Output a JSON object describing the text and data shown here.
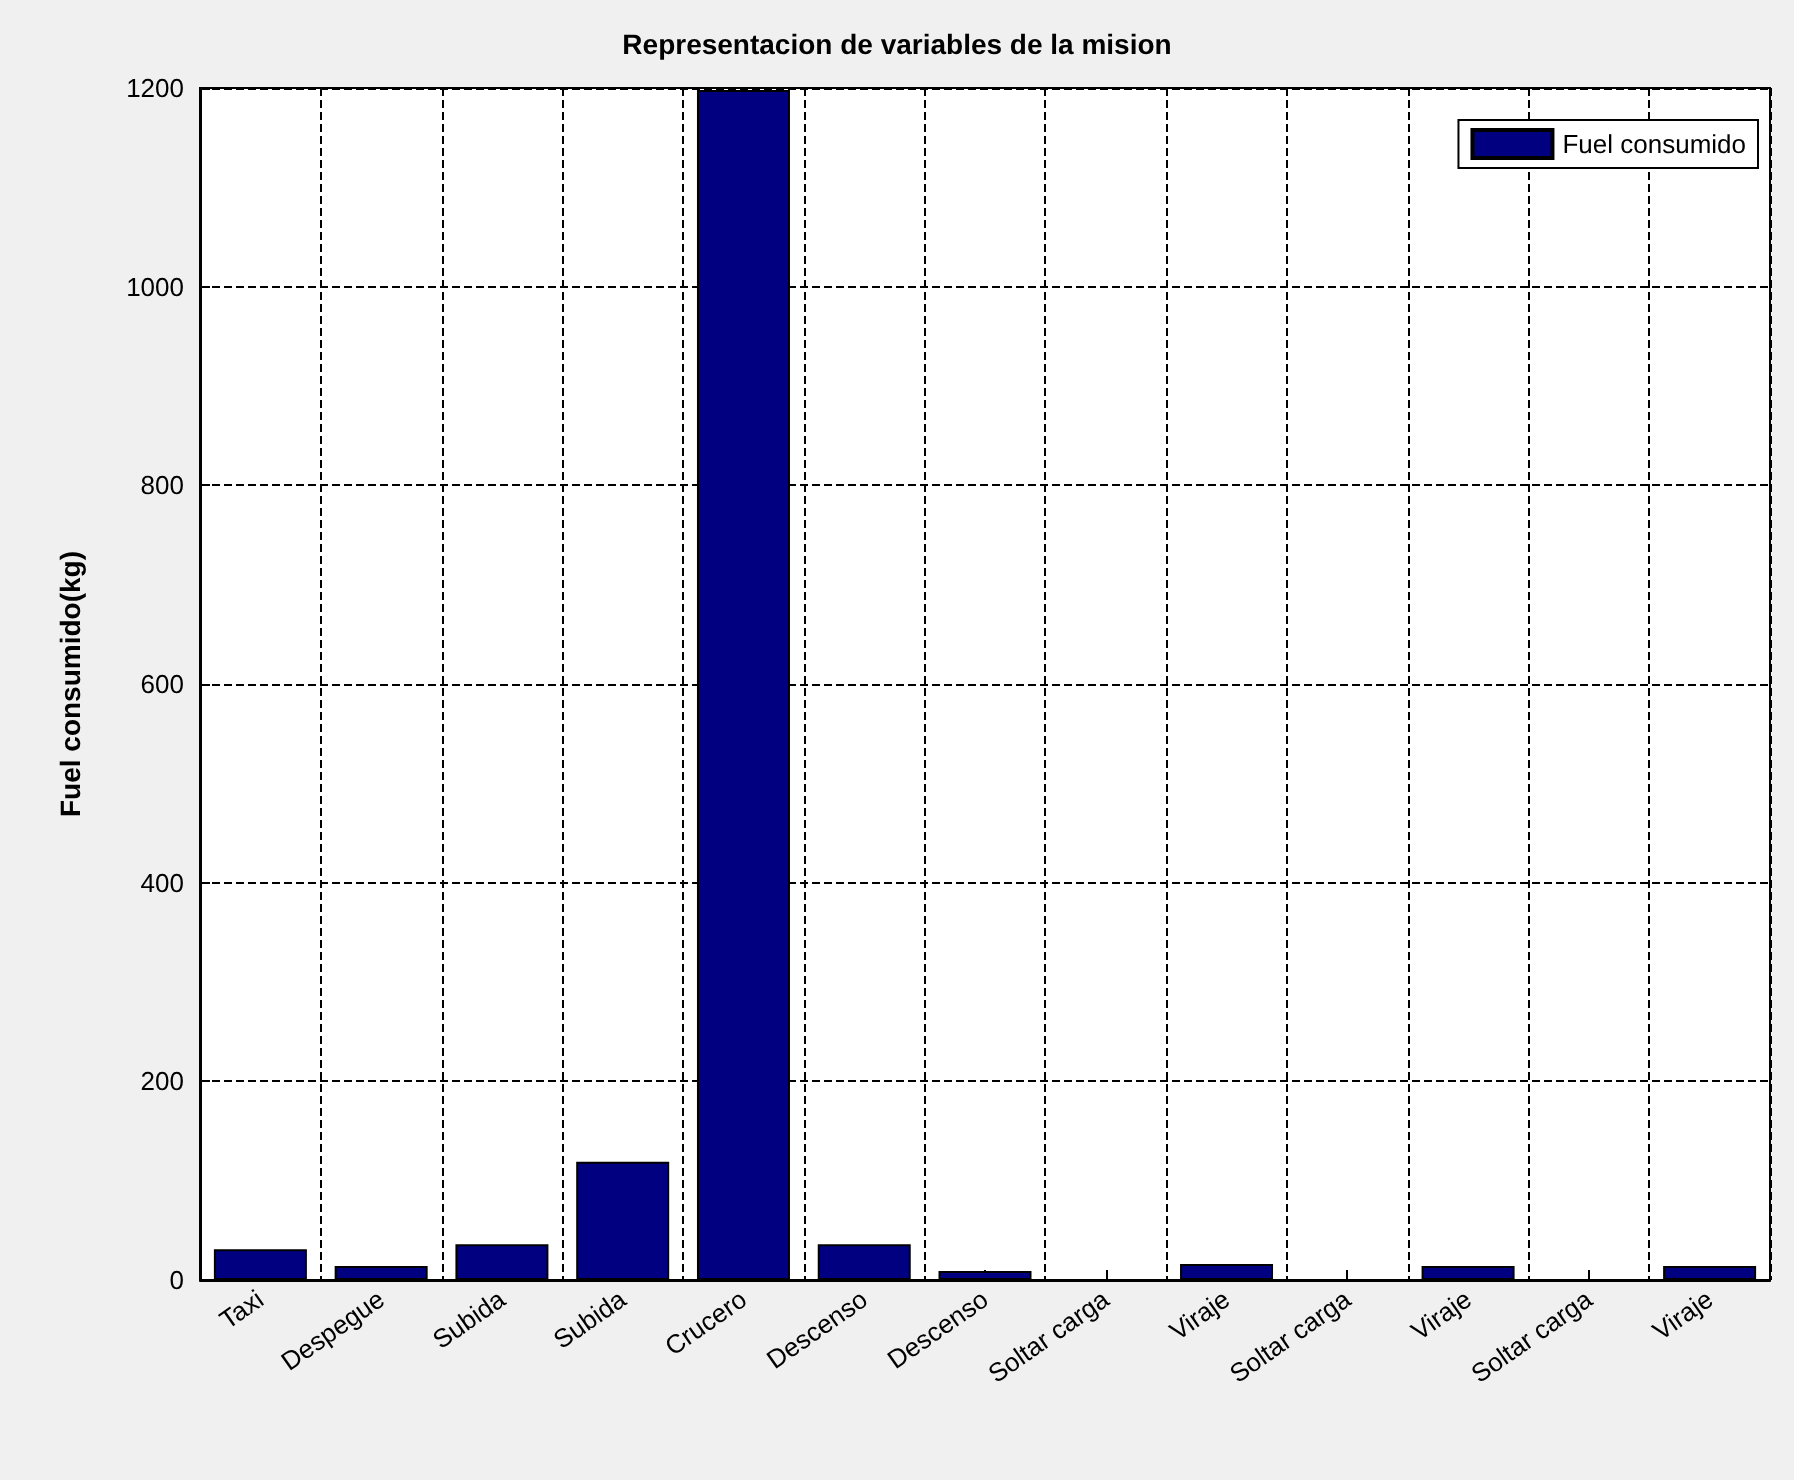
{
  "chart_data": {
    "type": "bar",
    "title": "Representacion de variables de la mision",
    "ylabel": "Fuel consumido(kg)",
    "categories": [
      "Taxi",
      "Despegue",
      "Subida",
      "Subida",
      "Crucero",
      "Descenso",
      "Descenso",
      "Soltar carga",
      "Viraje",
      "Soltar carga",
      "Viraje",
      "Soltar carga",
      "Viraje"
    ],
    "series": [
      {
        "name": "Fuel consumido",
        "color": "#000080",
        "values": [
          31,
          14,
          36,
          119,
          1198,
          36,
          9,
          0,
          16,
          0,
          14,
          0,
          14
        ]
      }
    ],
    "ylim": [
      0,
      1200
    ],
    "yticks": [
      0,
      200,
      400,
      600,
      800,
      1000,
      1200
    ],
    "grid": true,
    "legend": "top right"
  }
}
